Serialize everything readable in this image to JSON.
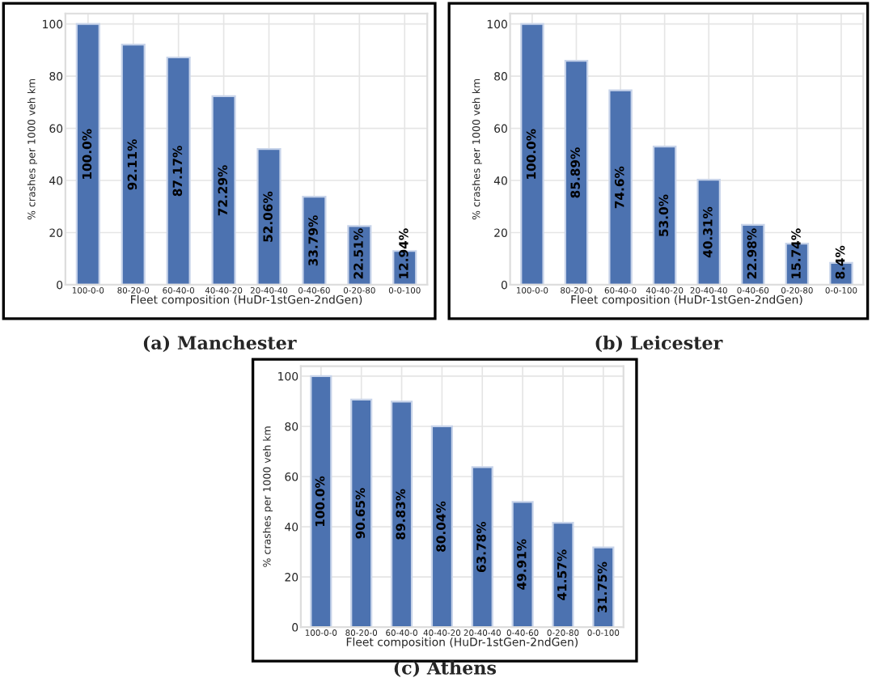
{
  "chart_data": [
    {
      "type": "bar",
      "title": "(a) Manchester",
      "xlabel": "Fleet composition (HuDr-1stGen-2ndGen)",
      "ylabel": "% crashes per 1000 veh km",
      "categories": [
        "100-0-0",
        "80-20-0",
        "60-40-0",
        "40-40-20",
        "20-40-40",
        "0-40-60",
        "0-20-80",
        "0-0-100"
      ],
      "values": [
        100.0,
        92.11,
        87.17,
        72.29,
        52.06,
        33.79,
        22.51,
        12.94
      ],
      "value_labels": [
        "100.0%",
        "92.11%",
        "87.17%",
        "72.29%",
        "52.06%",
        "33.79%",
        "22.51%",
        "12.94%"
      ],
      "color": "#4c72b0",
      "ylim": [
        0,
        104
      ],
      "yticks": [
        0,
        20,
        40,
        60,
        80,
        100
      ],
      "grid": true
    },
    {
      "type": "bar",
      "title": "(b) Leicester",
      "xlabel": "Fleet composition (HuDr-1stGen-2ndGen)",
      "ylabel": "% crashes per 1000 veh km",
      "categories": [
        "100-0-0",
        "80-20-0",
        "60-40-0",
        "40-40-20",
        "20-40-40",
        "0-40-60",
        "0-20-80",
        "0-0-100"
      ],
      "values": [
        100.0,
        85.89,
        74.6,
        53.0,
        40.31,
        22.98,
        15.74,
        8.4
      ],
      "value_labels": [
        "100.0%",
        "85.89%",
        "74.6%",
        "53.0%",
        "40.31%",
        "22.98%",
        "15.74%",
        "8.4%"
      ],
      "color": "#4c72b0",
      "ylim": [
        0,
        104
      ],
      "yticks": [
        0,
        20,
        40,
        60,
        80,
        100
      ],
      "grid": true
    },
    {
      "type": "bar",
      "title": "(c) Athens",
      "xlabel": "Fleet composition (HuDr-1stGen-2ndGen)",
      "ylabel": "% crashes per 1000 veh km",
      "categories": [
        "100-0-0",
        "80-20-0",
        "60-40-0",
        "40-40-20",
        "20-40-40",
        "0-40-60",
        "0-20-80",
        "0-0-100"
      ],
      "values": [
        100.0,
        90.65,
        89.83,
        80.04,
        63.78,
        49.91,
        41.57,
        31.75
      ],
      "value_labels": [
        "100.0%",
        "90.65%",
        "89.83%",
        "80.04%",
        "63.78%",
        "49.91%",
        "41.57%",
        "31.75%"
      ],
      "color": "#4c72b0",
      "ylim": [
        0,
        104
      ],
      "yticks": [
        0,
        20,
        40,
        60,
        80,
        100
      ],
      "grid": true
    }
  ]
}
